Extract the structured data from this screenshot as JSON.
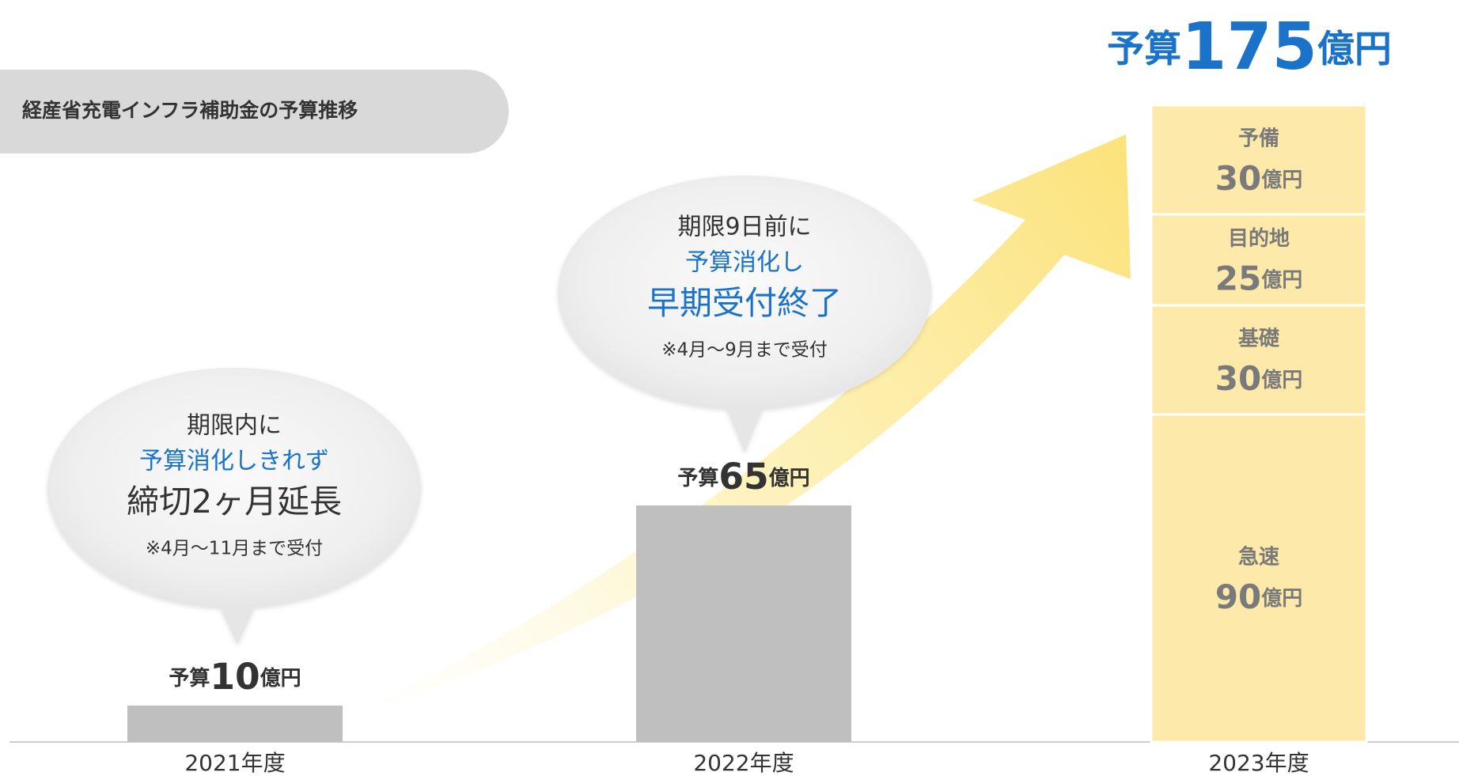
{
  "chart_data": {
    "type": "bar",
    "title": "経産省充電インフラ補助金の予算推移",
    "prefix": "予算",
    "unit": "億円",
    "categories": [
      "2021年度",
      "2022年度",
      "2023年度"
    ],
    "values": [
      10,
      65,
      175
    ],
    "color": "#bfbfbf",
    "highlight_color": "#1a73c8",
    "segments": [
      {
        "name": "急速",
        "value": 90
      },
      {
        "name": "基礎",
        "value": 30
      },
      {
        "name": "目的地",
        "value": 25
      },
      {
        "name": "予備",
        "value": 30
      }
    ],
    "segment_color": "#fde9a9",
    "annotations": [
      {
        "lead": "期限内に",
        "highlight": "予算消化しきれず",
        "emphasis": "締切2ヶ月延長",
        "note": "※4月～11月まで受付"
      },
      {
        "lead": "期限9日前に",
        "highlight": "予算消化し",
        "emphasis": "早期受付終了",
        "note": "※4月～9月まで受付"
      }
    ]
  }
}
